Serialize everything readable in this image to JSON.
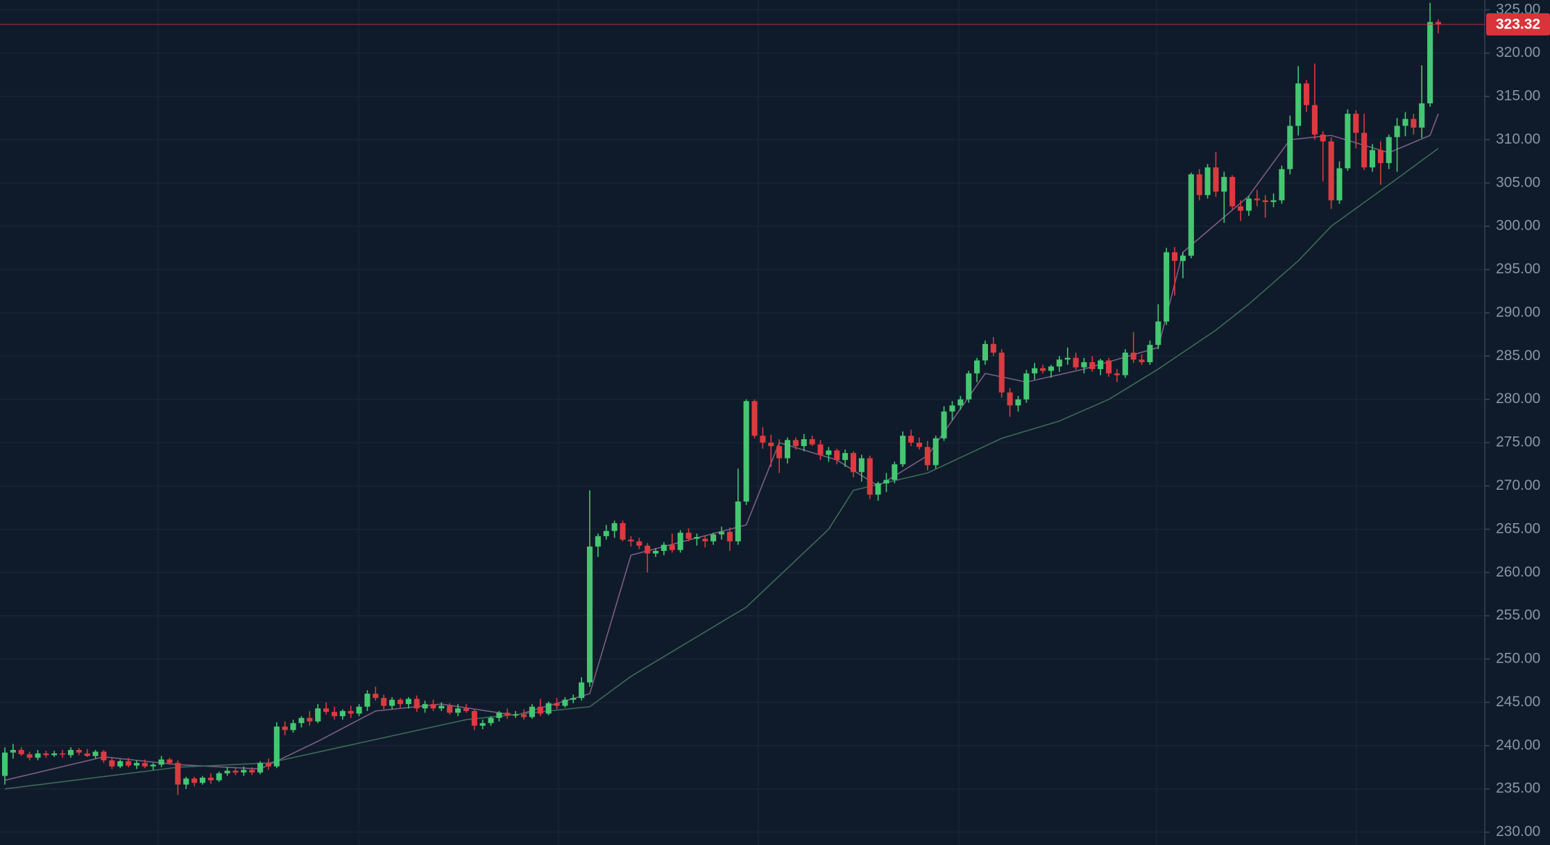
{
  "chart_data": {
    "type": "candlestick",
    "open": [
      236.5,
      239.2,
      239.5,
      239.0,
      238.6,
      239.1,
      238.9,
      239.1,
      238.9,
      239.5,
      239.1,
      238.8,
      239.3,
      238.3,
      237.6,
      238.2,
      237.7,
      238.0,
      237.6,
      237.8,
      238.4,
      238.0,
      235.5,
      236.2,
      235.7,
      236.3,
      236.0,
      236.8,
      237.1,
      236.9,
      237.2,
      236.9,
      238.0,
      237.6,
      242.2,
      241.8,
      242.6,
      243.2,
      242.8,
      244.3,
      243.9,
      243.4,
      244.0,
      243.7,
      244.5,
      246.0,
      245.5,
      244.6,
      245.3,
      244.8,
      245.4,
      244.3,
      244.8,
      244.3,
      244.6,
      243.8,
      244.3,
      244.0,
      242.3,
      242.6,
      243.2,
      243.8,
      243.5,
      243.6,
      243.3,
      244.5,
      243.7,
      244.9,
      244.6,
      245.3,
      245.5,
      247.3,
      263.0,
      264.2,
      264.8,
      265.7,
      263.8,
      263.6,
      263.1,
      262.2,
      262.5,
      263.2,
      262.6,
      264.6,
      263.9,
      263.9,
      263.6,
      264.4,
      264.7,
      263.6,
      268.2,
      279.8,
      275.8,
      275.0,
      274.6,
      273.2,
      275.3,
      274.6,
      275.4,
      274.8,
      273.6,
      274.1,
      273.0,
      273.8,
      271.6,
      273.2,
      269.0,
      270.3,
      270.7,
      272.5,
      275.8,
      275.0,
      274.5,
      272.4,
      275.5,
      278.6,
      279.3,
      280.0,
      283.0,
      284.5,
      286.4,
      285.4,
      280.8,
      279.3,
      280.0,
      283.0,
      283.6,
      283.3,
      283.8,
      284.6,
      284.8,
      283.7,
      284.3,
      283.5,
      284.5,
      283.0,
      282.8,
      285.4,
      284.6,
      284.3,
      286.3,
      289.0,
      297.0,
      296.0,
      296.6,
      306.0,
      303.6,
      306.8,
      304.0,
      305.7,
      302.3,
      301.8,
      303.2,
      303.0,
      302.8,
      303.0,
      306.6,
      311.6,
      316.5,
      314.0,
      310.6,
      309.8,
      303.0,
      306.7,
      313.0,
      310.8,
      306.8,
      308.8,
      307.3,
      310.3,
      311.6,
      312.4,
      311.4,
      314.2,
      323.6
    ],
    "high": [
      239.8,
      240.2,
      239.8,
      239.3,
      239.5,
      239.4,
      239.4,
      239.5,
      239.8,
      239.7,
      239.6,
      239.5,
      239.5,
      238.6,
      238.4,
      238.6,
      238.3,
      238.4,
      238.0,
      238.8,
      238.6,
      238.3,
      236.4,
      236.4,
      236.5,
      236.8,
      237.0,
      237.5,
      237.4,
      237.6,
      237.5,
      238.2,
      238.5,
      242.7,
      242.8,
      243.0,
      243.4,
      244.0,
      244.8,
      245.0,
      244.5,
      244.2,
      244.6,
      244.8,
      246.4,
      246.8,
      245.9,
      245.6,
      245.5,
      245.6,
      245.8,
      245.2,
      245.3,
      245.0,
      244.9,
      244.8,
      244.8,
      244.2,
      243.0,
      243.4,
      244.0,
      244.3,
      244.0,
      244.2,
      244.8,
      245.4,
      245.1,
      245.5,
      245.6,
      245.9,
      247.9,
      269.5,
      264.5,
      265.5,
      266.0,
      266.0,
      264.2,
      264.0,
      263.4,
      262.8,
      263.5,
      264.5,
      264.9,
      265.1,
      264.5,
      264.3,
      264.6,
      265.3,
      265.2,
      272.0,
      280.0,
      280.0,
      276.8,
      275.9,
      275.4,
      275.6,
      275.6,
      276.0,
      275.8,
      275.3,
      274.5,
      274.3,
      274.2,
      274.0,
      273.6,
      273.5,
      270.5,
      271.5,
      272.8,
      276.3,
      276.5,
      275.6,
      275.2,
      275.8,
      279.2,
      279.8,
      280.4,
      283.3,
      284.8,
      286.8,
      287.2,
      285.8,
      281.3,
      280.4,
      283.4,
      284.2,
      284.0,
      284.0,
      285.0,
      286.0,
      285.4,
      284.8,
      285.0,
      284.7,
      284.8,
      283.5,
      285.8,
      287.8,
      285.2,
      286.8,
      291.0,
      297.5,
      297.6,
      297.0,
      306.2,
      306.6,
      307.2,
      308.6,
      306.3,
      305.9,
      303.0,
      303.5,
      304.2,
      303.6,
      303.8,
      307.0,
      312.8,
      318.5,
      316.9,
      318.8,
      311.0,
      310.3,
      307.5,
      313.5,
      313.4,
      313.0,
      309.5,
      309.8,
      310.6,
      312.5,
      313.2,
      313.0,
      318.6,
      325.8,
      323.9
    ],
    "low": [
      235.5,
      238.5,
      238.8,
      238.3,
      238.3,
      238.6,
      238.7,
      238.6,
      238.6,
      238.9,
      238.7,
      238.5,
      238.0,
      237.3,
      237.4,
      237.5,
      237.3,
      237.4,
      237.2,
      237.5,
      237.8,
      234.3,
      235.0,
      235.3,
      235.5,
      235.6,
      235.8,
      236.5,
      236.6,
      236.5,
      236.6,
      236.7,
      237.2,
      237.4,
      241.2,
      241.5,
      242.1,
      242.3,
      242.6,
      243.6,
      243.0,
      243.0,
      243.2,
      243.4,
      244.0,
      245.2,
      244.2,
      244.2,
      244.4,
      244.3,
      243.9,
      243.8,
      244.0,
      244.0,
      243.6,
      243.4,
      243.8,
      241.8,
      241.9,
      242.3,
      242.8,
      243.1,
      243.2,
      243.0,
      243.1,
      243.4,
      243.5,
      244.2,
      244.4,
      244.9,
      245.2,
      246.8,
      261.8,
      263.8,
      264.0,
      263.6,
      263.0,
      262.7,
      260.0,
      261.8,
      262.0,
      262.3,
      262.3,
      263.6,
      263.1,
      262.9,
      263.2,
      263.8,
      262.5,
      263.2,
      267.8,
      275.5,
      274.3,
      272.2,
      271.5,
      272.6,
      274.2,
      274.0,
      274.6,
      273.0,
      272.8,
      272.5,
      272.2,
      271.0,
      270.5,
      268.5,
      268.3,
      269.3,
      270.3,
      272.2,
      274.6,
      274.2,
      271.8,
      272.0,
      275.2,
      277.6,
      278.8,
      279.6,
      282.0,
      284.0,
      285.0,
      280.2,
      278.0,
      278.6,
      279.6,
      282.3,
      283.0,
      282.5,
      283.2,
      284.0,
      283.4,
      283.0,
      283.2,
      282.8,
      282.6,
      282.0,
      282.5,
      284.2,
      284.0,
      284.0,
      285.8,
      288.6,
      292.0,
      294.0,
      296.3,
      303.0,
      303.2,
      303.4,
      300.4,
      302.0,
      300.6,
      301.2,
      302.3,
      301.0,
      302.2,
      302.6,
      306.0,
      310.5,
      313.2,
      310.0,
      305.2,
      302.0,
      302.6,
      306.4,
      309.0,
      306.5,
      306.3,
      304.8,
      306.6,
      306.3,
      310.4,
      310.6,
      310.2,
      313.8,
      322.3
    ],
    "close": [
      239.2,
      239.5,
      239.0,
      238.6,
      239.1,
      238.9,
      239.1,
      239.0,
      239.5,
      239.2,
      238.8,
      239.3,
      238.3,
      237.6,
      238.2,
      237.7,
      238.0,
      237.6,
      237.8,
      238.4,
      238.0,
      235.5,
      236.2,
      235.7,
      236.3,
      236.0,
      236.8,
      237.1,
      236.9,
      237.2,
      236.9,
      238.0,
      237.6,
      242.2,
      241.8,
      242.6,
      243.2,
      242.8,
      244.3,
      243.9,
      243.4,
      244.0,
      243.7,
      244.5,
      246.0,
      245.5,
      244.6,
      245.3,
      244.8,
      245.4,
      244.3,
      244.8,
      244.3,
      244.6,
      243.8,
      244.3,
      244.0,
      242.3,
      242.6,
      243.2,
      243.8,
      243.5,
      243.6,
      243.3,
      244.5,
      243.7,
      244.9,
      244.6,
      245.3,
      245.5,
      247.3,
      263.0,
      264.2,
      264.8,
      265.7,
      263.8,
      263.6,
      263.1,
      262.2,
      262.5,
      263.2,
      262.6,
      264.6,
      263.9,
      264.1,
      263.6,
      264.4,
      264.7,
      263.6,
      268.2,
      279.8,
      275.8,
      275.0,
      274.6,
      273.2,
      275.3,
      274.6,
      275.4,
      274.8,
      273.6,
      274.1,
      273.0,
      273.8,
      271.6,
      273.2,
      269.0,
      270.3,
      270.7,
      272.5,
      275.8,
      275.0,
      274.5,
      272.4,
      275.5,
      278.6,
      279.3,
      280.0,
      283.0,
      284.5,
      286.4,
      285.4,
      280.8,
      279.3,
      280.0,
      283.0,
      283.6,
      283.3,
      283.8,
      284.6,
      284.8,
      283.7,
      284.3,
      283.5,
      284.5,
      283.0,
      282.8,
      285.4,
      284.6,
      284.3,
      286.3,
      289.0,
      297.0,
      296.0,
      296.6,
      306.0,
      303.6,
      306.8,
      304.0,
      305.7,
      302.3,
      301.8,
      303.2,
      303.0,
      302.8,
      303.0,
      306.6,
      311.6,
      316.5,
      314.0,
      310.6,
      309.8,
      303.0,
      306.7,
      313.0,
      310.8,
      306.8,
      308.8,
      307.3,
      310.3,
      311.6,
      312.4,
      311.4,
      314.2,
      323.6,
      323.32
    ],
    "up_color": "#45c772",
    "down_color": "#dc3a40",
    "overlays": [
      {
        "color": "#7d5f86",
        "x": [
          0,
          12,
          21,
          31,
          38,
          45,
          53,
          62,
          71,
          76,
          82,
          90,
          94,
          101,
          106,
          112,
          119,
          124,
          131,
          140,
          143,
          151,
          156,
          161,
          168,
          173,
          174
        ],
        "values": [
          236,
          238.7,
          237.8,
          237.3,
          240.5,
          244,
          244.8,
          243.5,
          246,
          262,
          263.5,
          265.5,
          275,
          273,
          270,
          273.5,
          283,
          282,
          283.5,
          286,
          297,
          303.5,
          310,
          310.5,
          308.5,
          310.5,
          313
        ]
      },
      {
        "color": "#3f6b5c",
        "x": [
          0,
          21,
          32,
          44,
          56,
          71,
          76,
          90,
          100,
          103,
          112,
          121,
          128,
          134,
          140,
          147,
          151,
          157,
          161,
          169,
          174
        ],
        "values": [
          235,
          237.5,
          238,
          240.5,
          243,
          244.5,
          248,
          256,
          265,
          269.5,
          271.5,
          275.5,
          277.5,
          280,
          283.5,
          288,
          291,
          296,
          300,
          305.5,
          309
        ]
      }
    ],
    "ylim": [
      228.52,
      326.14
    ],
    "yticks": [
      {
        "value": 230,
        "label": "230.00"
      },
      {
        "value": 235,
        "label": "235.00"
      },
      {
        "value": 240,
        "label": "240.00"
      },
      {
        "value": 245,
        "label": "245.00"
      },
      {
        "value": 250,
        "label": "250.00"
      },
      {
        "value": 255,
        "label": "255.00"
      },
      {
        "value": 260,
        "label": "260.00"
      },
      {
        "value": 265,
        "label": "265.00"
      },
      {
        "value": 270,
        "label": "270.00"
      },
      {
        "value": 275,
        "label": "275.00"
      },
      {
        "value": 280,
        "label": "280.00"
      },
      {
        "value": 285,
        "label": "285.00"
      },
      {
        "value": 290,
        "label": "290.00"
      },
      {
        "value": 295,
        "label": "295.00"
      },
      {
        "value": 300,
        "label": "300.00"
      },
      {
        "value": 305,
        "label": "305.00"
      },
      {
        "value": 310,
        "label": "310.00"
      },
      {
        "value": 315,
        "label": "315.00"
      },
      {
        "value": 320,
        "label": "320.00"
      },
      {
        "value": 325,
        "label": "325.00"
      }
    ],
    "grid": true,
    "last_price": 323.32,
    "last_price_color": "#d8343a"
  }
}
